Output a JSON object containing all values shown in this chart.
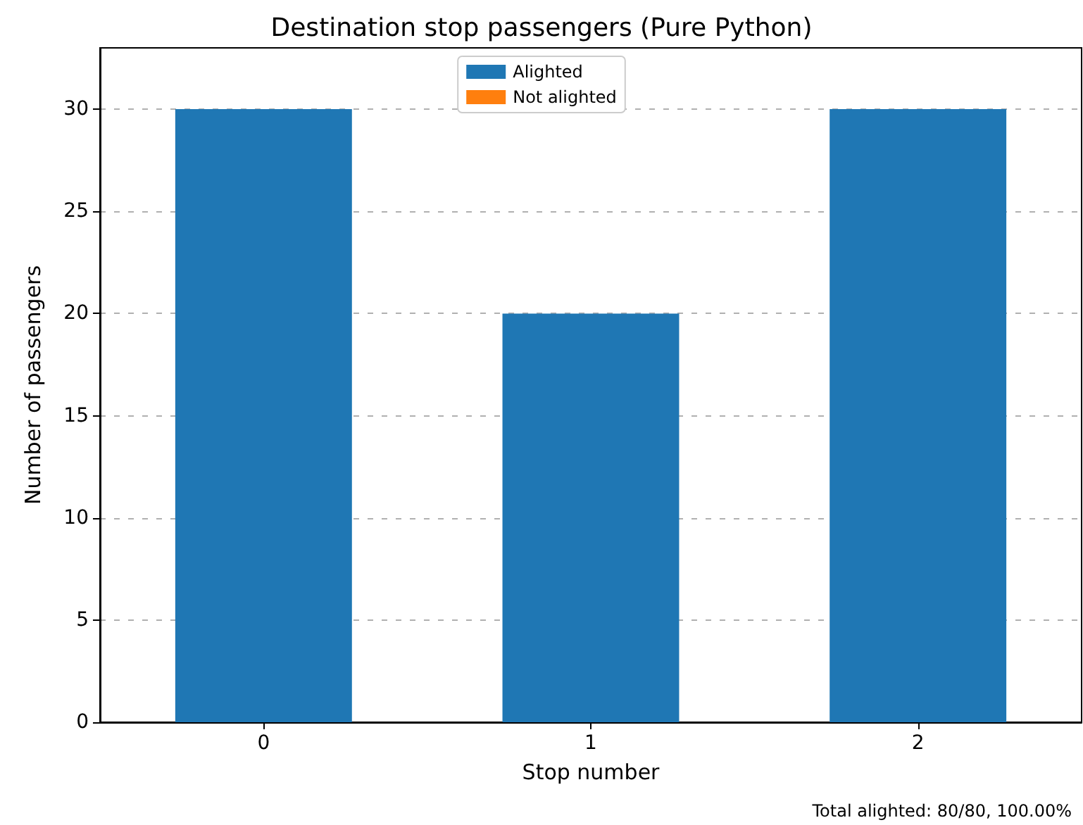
{
  "chart_data": {
    "type": "bar",
    "title": "Destination stop passengers (Pure Python)",
    "xlabel": "Stop number",
    "ylabel": "Number of passengers",
    "categories": [
      "0",
      "1",
      "2"
    ],
    "series": [
      {
        "name": "Alighted",
        "color": "#1f77b4",
        "values": [
          30,
          20,
          30
        ]
      },
      {
        "name": "Not alighted",
        "color": "#ff7f0e",
        "values": [
          0,
          0,
          0
        ]
      }
    ],
    "stacked": true,
    "ylim": [
      0,
      33
    ],
    "yticks": [
      0,
      5,
      10,
      15,
      20,
      25,
      30
    ],
    "grid": "y",
    "legend": "top",
    "annotations": [
      "Total alighted: 80/80, 100.00%"
    ]
  }
}
